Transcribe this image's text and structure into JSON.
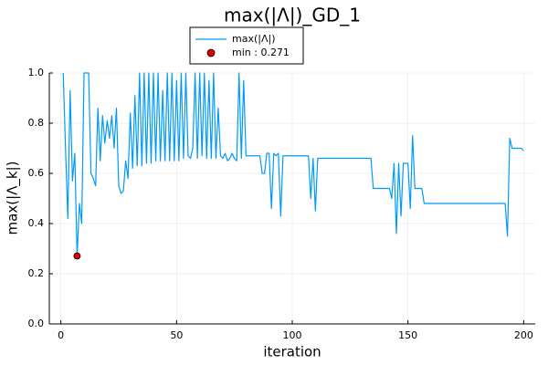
{
  "chart_data": {
    "type": "line",
    "title": "max(|Λ|)_GD_1",
    "xlabel": "iteration",
    "ylabel": "max(|Λ_k|)",
    "xlim": [
      -5,
      205
    ],
    "ylim": [
      0,
      1
    ],
    "xticks": [
      0,
      50,
      100,
      150,
      200
    ],
    "yticks": [
      {
        "value": 0,
        "label": "0.0"
      },
      0.2,
      0.4,
      0.6,
      0.8,
      {
        "value": 1,
        "label": "1.0"
      }
    ],
    "grid": true,
    "legend": "top",
    "series": [
      {
        "name": "max(|Λ|)",
        "type": "line",
        "color": "#009af9",
        "x": [
          1,
          2,
          3,
          4,
          5,
          6,
          7,
          8,
          9,
          10,
          11,
          12,
          13,
          14,
          15,
          16,
          17,
          18,
          19,
          20,
          21,
          22,
          23,
          24,
          25,
          26,
          27,
          28,
          29,
          30,
          31,
          32,
          33,
          34,
          35,
          36,
          37,
          38,
          39,
          40,
          41,
          42,
          43,
          44,
          45,
          46,
          47,
          48,
          49,
          50,
          51,
          52,
          53,
          54,
          55,
          56,
          57,
          58,
          59,
          60,
          61,
          62,
          63,
          64,
          65,
          66,
          67,
          68,
          69,
          70,
          71,
          72,
          73,
          74,
          75,
          76,
          77,
          78,
          79,
          80,
          81,
          82,
          83,
          84,
          85,
          86,
          87,
          88,
          89,
          90,
          91,
          92,
          93,
          94,
          95,
          96,
          97,
          98,
          99,
          100,
          101,
          102,
          103,
          104,
          105,
          106,
          107,
          108,
          109,
          110,
          111,
          112,
          113,
          114,
          115,
          116,
          117,
          118,
          119,
          120,
          121,
          122,
          123,
          124,
          125,
          126,
          127,
          128,
          129,
          130,
          131,
          132,
          133,
          134,
          135,
          136,
          137,
          138,
          139,
          140,
          141,
          142,
          143,
          144,
          145,
          146,
          147,
          148,
          149,
          150,
          151,
          152,
          153,
          154,
          155,
          156,
          157,
          158,
          159,
          160,
          161,
          162,
          163,
          164,
          165,
          166,
          167,
          168,
          169,
          170,
          171,
          172,
          173,
          174,
          175,
          176,
          177,
          178,
          179,
          180,
          181,
          182,
          183,
          184,
          185,
          186,
          187,
          188,
          189,
          190,
          191,
          192,
          193,
          194,
          195,
          196,
          197,
          198,
          199,
          200
        ],
        "values": [
          1.0,
          0.7,
          0.42,
          0.93,
          0.57,
          0.68,
          0.271,
          0.48,
          0.4,
          1.0,
          1.0,
          1.0,
          0.6,
          0.58,
          0.55,
          0.86,
          0.65,
          0.83,
          0.72,
          0.81,
          0.74,
          0.83,
          0.7,
          0.86,
          0.55,
          0.52,
          0.53,
          0.65,
          0.58,
          0.84,
          0.62,
          0.91,
          0.63,
          1.0,
          0.63,
          1.0,
          0.64,
          1.0,
          0.64,
          1.0,
          0.65,
          1.0,
          0.65,
          0.93,
          0.65,
          1.0,
          0.65,
          1.0,
          0.65,
          0.97,
          0.65,
          1.0,
          0.66,
          1.0,
          0.67,
          0.66,
          0.7,
          1.0,
          0.66,
          1.0,
          0.67,
          1.0,
          0.66,
          0.97,
          0.66,
          1.0,
          0.66,
          0.86,
          0.67,
          0.66,
          0.68,
          0.65,
          0.66,
          0.68,
          0.66,
          0.65,
          1.0,
          0.66,
          0.97,
          0.67,
          0.67,
          0.67,
          0.67,
          0.67,
          0.67,
          0.67,
          0.6,
          0.6,
          0.68,
          0.68,
          0.46,
          0.68,
          0.67,
          0.68,
          0.43,
          0.67,
          0.67,
          0.67,
          0.67,
          0.67,
          0.67,
          0.67,
          0.67,
          0.67,
          0.67,
          0.67,
          0.67,
          0.5,
          0.66,
          0.45,
          0.66,
          0.66,
          0.66,
          0.66,
          0.66,
          0.66,
          0.66,
          0.66,
          0.66,
          0.66,
          0.66,
          0.66,
          0.66,
          0.66,
          0.66,
          0.66,
          0.66,
          0.66,
          0.66,
          0.66,
          0.66,
          0.66,
          0.66,
          0.66,
          0.54,
          0.54,
          0.54,
          0.54,
          0.54,
          0.54,
          0.54,
          0.54,
          0.5,
          0.64,
          0.36,
          0.64,
          0.43,
          0.64,
          0.64,
          0.64,
          0.46,
          0.75,
          0.54,
          0.54,
          0.54,
          0.54,
          0.48,
          0.48,
          0.48,
          0.48,
          0.48,
          0.48,
          0.48,
          0.48,
          0.48,
          0.48,
          0.48,
          0.48,
          0.48,
          0.48,
          0.48,
          0.48,
          0.48,
          0.48,
          0.48,
          0.48,
          0.48,
          0.48,
          0.48,
          0.48,
          0.48,
          0.48,
          0.48,
          0.48,
          0.48,
          0.48,
          0.48,
          0.48,
          0.48,
          0.48,
          0.48,
          0.48,
          0.35,
          0.74,
          0.7,
          0.7,
          0.7,
          0.7,
          0.7,
          0.69
        ]
      },
      {
        "name": "min : 0.271",
        "type": "scatter",
        "color": "#e30000",
        "x": [
          7
        ],
        "values": [
          0.271
        ]
      }
    ]
  }
}
